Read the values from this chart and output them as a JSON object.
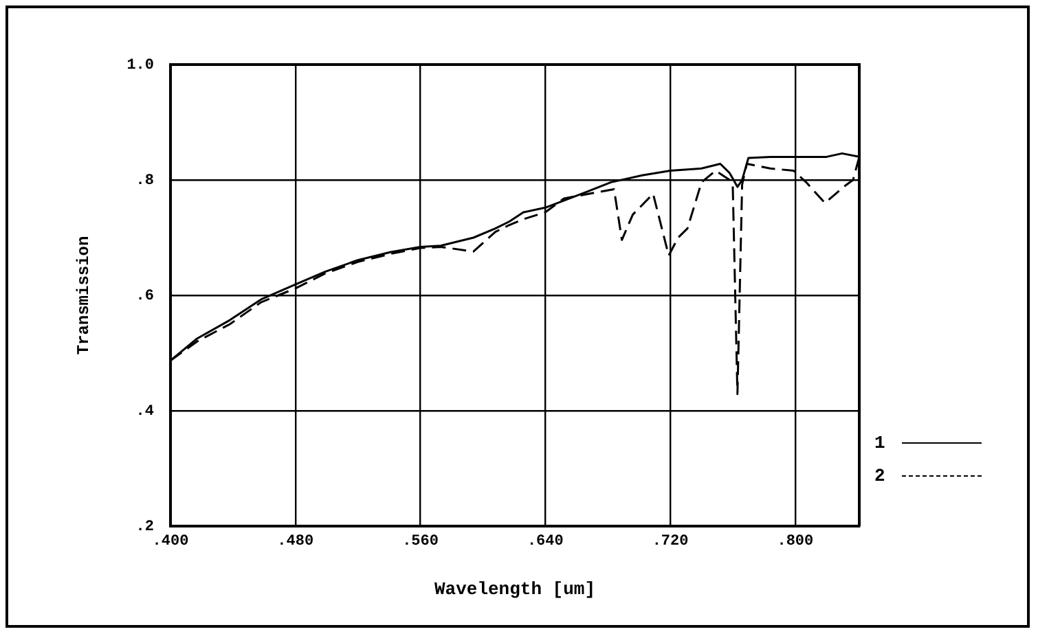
{
  "chart_data": {
    "type": "line",
    "xlabel": "Wavelength [um]",
    "ylabel": "Transmission",
    "xlim": [
      0.4,
      0.841
    ],
    "ylim": [
      0.2,
      1.0
    ],
    "xticks": [
      {
        "value": 0.4,
        "label": ".400"
      },
      {
        "value": 0.48,
        "label": ".480"
      },
      {
        "value": 0.56,
        "label": ".560"
      },
      {
        "value": 0.64,
        "label": ".640"
      },
      {
        "value": 0.72,
        "label": ".720"
      },
      {
        "value": 0.8,
        "label": ".800"
      }
    ],
    "yticks": [
      {
        "value": 0.2,
        "label": ".2"
      },
      {
        "value": 0.4,
        "label": ".4"
      },
      {
        "value": 0.6,
        "label": ".6"
      },
      {
        "value": 0.8,
        "label": ".8"
      },
      {
        "value": 1.0,
        "label": "1.0"
      }
    ],
    "grid": true,
    "legend": "bottom right",
    "marker": "none",
    "series": [
      {
        "name": "1",
        "color": "#000000",
        "line_style": "solid",
        "x": [
          0.4,
          0.417,
          0.438,
          0.458,
          0.48,
          0.499,
          0.52,
          0.541,
          0.56,
          0.573,
          0.594,
          0.608,
          0.617,
          0.626,
          0.64,
          0.667,
          0.682,
          0.702,
          0.72,
          0.74,
          0.752,
          0.758,
          0.763,
          0.766,
          0.77,
          0.784,
          0.8,
          0.82,
          0.83,
          0.841
        ],
        "values": [
          0.487,
          0.525,
          0.557,
          0.593,
          0.619,
          0.641,
          0.661,
          0.675,
          0.684,
          0.686,
          0.7,
          0.716,
          0.728,
          0.744,
          0.752,
          0.78,
          0.796,
          0.808,
          0.816,
          0.82,
          0.828,
          0.812,
          0.788,
          0.8,
          0.838,
          0.84,
          0.84,
          0.84,
          0.846,
          0.84
        ]
      },
      {
        "name": "2",
        "color": "#000000",
        "line_style": "dashed",
        "x": [
          0.4,
          0.417,
          0.438,
          0.458,
          0.48,
          0.499,
          0.52,
          0.541,
          0.56,
          0.573,
          0.594,
          0.608,
          0.617,
          0.626,
          0.64,
          0.652,
          0.684,
          0.689,
          0.696,
          0.709,
          0.719,
          0.725,
          0.731,
          0.74,
          0.749,
          0.758,
          0.76,
          0.763,
          0.766,
          0.769,
          0.784,
          0.799,
          0.807,
          0.819,
          0.831,
          0.837,
          0.841
        ],
        "values": [
          0.487,
          0.52,
          0.55,
          0.588,
          0.612,
          0.638,
          0.658,
          0.672,
          0.682,
          0.684,
          0.676,
          0.71,
          0.722,
          0.732,
          0.744,
          0.768,
          0.784,
          0.696,
          0.74,
          0.776,
          0.669,
          0.7,
          0.716,
          0.796,
          0.816,
          0.8,
          0.79,
          0.429,
          0.792,
          0.828,
          0.82,
          0.816,
          0.796,
          0.76,
          0.788,
          0.8,
          0.84
        ]
      }
    ]
  }
}
